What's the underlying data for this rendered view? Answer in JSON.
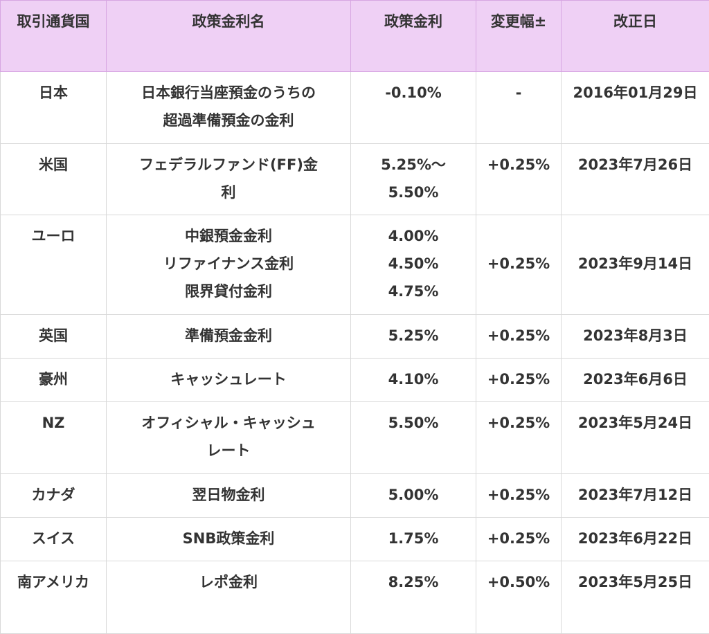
{
  "headers": [
    "取引通貨国",
    "政策金利名",
    "政策金利",
    "変更幅±",
    "改正日"
  ],
  "rows": [
    {
      "country": "日本",
      "name_lines": [
        "日本銀行当座預金のうちの",
        "超過準備預金の金利"
      ],
      "rate_lines": [
        "-0.10%"
      ],
      "change": "-",
      "date": "2016年01月29日"
    },
    {
      "country": "米国",
      "name_lines": [
        "フェデラルファンド(FF)金",
        "利"
      ],
      "rate_lines": [
        "5.25%〜",
        "5.50%"
      ],
      "change": "+0.25%",
      "date": "2023年7月26日"
    },
    {
      "country": "ユーロ",
      "name_lines": [
        "中銀預金金利",
        "リファイナンス金利",
        "限界貸付金利"
      ],
      "rate_lines": [
        "4.00%",
        "4.50%",
        "4.75%"
      ],
      "change": "+0.25%",
      "date": "2023年9月14日"
    },
    {
      "country": "英国",
      "name_lines": [
        "準備預金金利"
      ],
      "rate_lines": [
        "5.25%"
      ],
      "change": "+0.25%",
      "date": "2023年8月3日"
    },
    {
      "country": "豪州",
      "name_lines": [
        "キャッシュレート"
      ],
      "rate_lines": [
        "4.10%"
      ],
      "change": "+0.25%",
      "date": "2023年6月6日"
    },
    {
      "country": "NZ",
      "name_lines": [
        "オフィシャル・キャッシュ",
        "レート"
      ],
      "rate_lines": [
        "5.50%"
      ],
      "change": "+0.25%",
      "date": "2023年5月24日"
    },
    {
      "country": "カナダ",
      "name_lines": [
        "翌日物金利"
      ],
      "rate_lines": [
        "5.00%"
      ],
      "change": "+0.25%",
      "date": "2023年7月12日"
    },
    {
      "country": "スイス",
      "name_lines": [
        "SNB政策金利"
      ],
      "rate_lines": [
        "1.75%"
      ],
      "change": "+0.25%",
      "date": "2023年6月22日"
    },
    {
      "country": "南アメリカ",
      "name_lines": [
        "レポ金利"
      ],
      "rate_lines": [
        "8.25%"
      ],
      "change": "+0.50%",
      "date": "2023年5月25日"
    }
  ]
}
